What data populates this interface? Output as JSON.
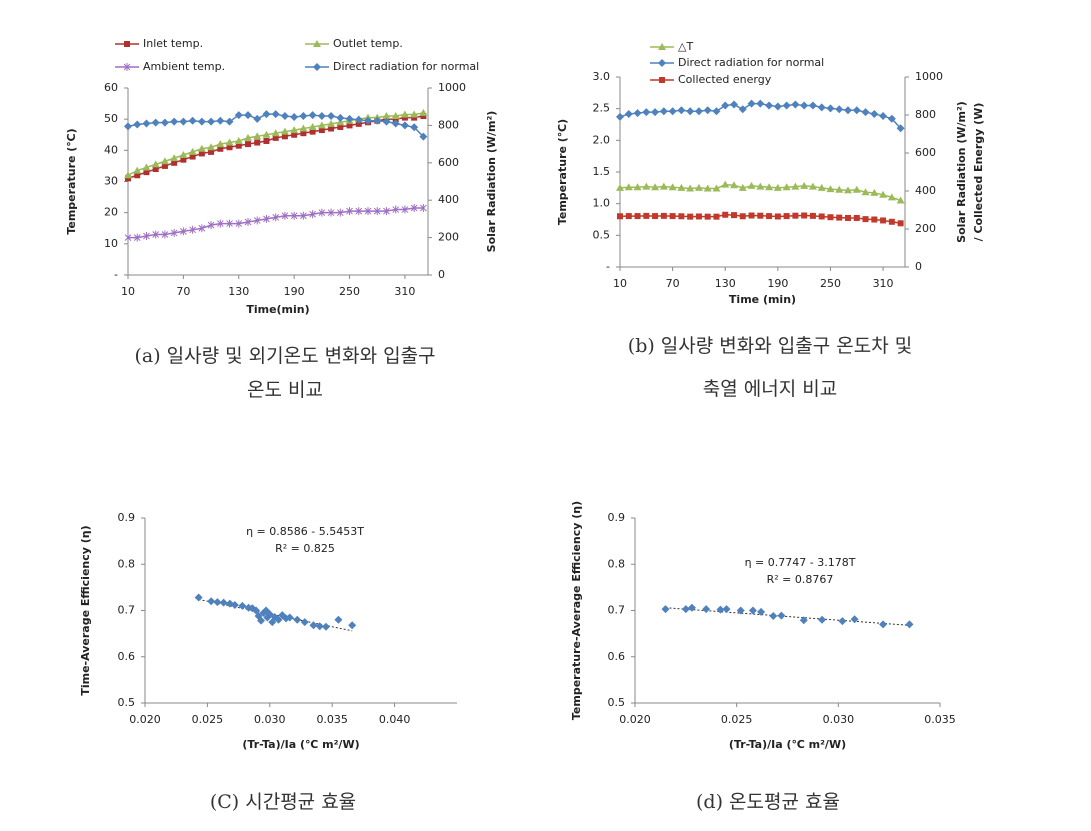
{
  "chart_data": [
    {
      "type": "line",
      "caption": [
        "(a) 일사량 및 외기온도 변화와 입출구",
        "온도 비교"
      ],
      "xlabel": "Time(min)",
      "ylabel": "Temperature (℃)",
      "y2label": "Solar Radiation (W/m²)",
      "x": [
        10,
        20,
        30,
        40,
        50,
        60,
        70,
        80,
        90,
        100,
        110,
        120,
        130,
        140,
        150,
        160,
        170,
        180,
        190,
        200,
        210,
        220,
        230,
        240,
        250,
        260,
        270,
        280,
        290,
        300,
        310,
        320,
        330
      ],
      "xlim": [
        10,
        335
      ],
      "xticks": [
        10,
        70,
        130,
        190,
        250,
        310
      ],
      "ylim": [
        0,
        60
      ],
      "yticks": [
        {
          "value": 0,
          "label": "-"
        },
        10,
        20,
        30,
        40,
        50,
        60
      ],
      "y2lim": [
        0,
        1000
      ],
      "y2ticks": [
        0,
        200,
        400,
        600,
        800,
        1000
      ],
      "series": [
        {
          "name": "Inlet temp.",
          "color": "#b03030",
          "marker": "square",
          "values": [
            31,
            32,
            33,
            34,
            35,
            36,
            37,
            38,
            39,
            39.5,
            40.5,
            41,
            41.5,
            42,
            42.5,
            43,
            44,
            44.5,
            45,
            45.5,
            46,
            46.5,
            47,
            47.5,
            48,
            48.5,
            49,
            49.5,
            50,
            50,
            50.5,
            50.5,
            51
          ]
        },
        {
          "name": "Outlet temp.",
          "color": "#9bbb59",
          "marker": "triangle",
          "values": [
            32,
            33.5,
            34.5,
            35.5,
            36.5,
            37.5,
            38.5,
            39.5,
            40.5,
            41,
            42,
            42.5,
            43,
            44,
            44.5,
            45,
            45.5,
            46,
            46.5,
            47,
            47.5,
            48,
            48.5,
            49,
            49.5,
            50,
            50.5,
            50.5,
            51,
            51,
            51.5,
            51.5,
            52
          ]
        },
        {
          "name": "Ambient temp.",
          "color": "#9f6fc4",
          "marker": "star",
          "values": [
            12,
            12,
            12.5,
            13,
            13,
            13.5,
            14,
            14.5,
            15,
            16,
            16.5,
            16.5,
            16.5,
            17,
            17.5,
            18,
            18.5,
            19,
            19,
            19,
            19.5,
            20,
            20,
            20,
            20.5,
            20.5,
            20.5,
            20.5,
            20.5,
            21,
            21,
            21.5,
            21.5
          ]
        },
        {
          "name": "Direct radiation for normal",
          "color": "#4f81bd",
          "marker": "diamond",
          "axis": "y2",
          "values": [
            795,
            805,
            810,
            815,
            815,
            820,
            820,
            825,
            820,
            820,
            825,
            820,
            855,
            855,
            835,
            860,
            860,
            850,
            845,
            850,
            855,
            850,
            850,
            840,
            835,
            830,
            825,
            825,
            820,
            810,
            800,
            790,
            740
          ]
        }
      ]
    },
    {
      "type": "line",
      "caption": [
        "(b) 일사량 변화와 입출구 온도차 및",
        "축열 에너지 비교"
      ],
      "xlabel": "Time (min)",
      "ylabel": "Temperature (℃)",
      "y2label": [
        "Solar Radiation (W/m²)",
        "/ Collected Energy (W)"
      ],
      "x": [
        10,
        20,
        30,
        40,
        50,
        60,
        70,
        80,
        90,
        100,
        110,
        120,
        130,
        140,
        150,
        160,
        170,
        180,
        190,
        200,
        210,
        220,
        230,
        240,
        250,
        260,
        270,
        280,
        290,
        300,
        310,
        320,
        330
      ],
      "xlim": [
        10,
        335
      ],
      "xticks": [
        10,
        70,
        130,
        190,
        250,
        310
      ],
      "ylim": [
        0,
        3
      ],
      "yticks": [
        {
          "value": 0,
          "label": "-"
        },
        0.5,
        {
          "value": 1,
          "label": "1.0"
        },
        1.5,
        {
          "value": 2,
          "label": "2.0"
        },
        2.5,
        {
          "value": 3,
          "label": "3.0"
        }
      ],
      "y2lim": [
        0,
        1000
      ],
      "y2ticks": [
        0,
        200,
        400,
        600,
        800,
        1000
      ],
      "series": [
        {
          "name": "△T",
          "color": "#9bbb59",
          "marker": "triangle",
          "values": [
            1.25,
            1.26,
            1.26,
            1.27,
            1.26,
            1.27,
            1.26,
            1.25,
            1.24,
            1.25,
            1.24,
            1.24,
            1.3,
            1.29,
            1.25,
            1.28,
            1.27,
            1.26,
            1.25,
            1.26,
            1.27,
            1.28,
            1.27,
            1.25,
            1.23,
            1.22,
            1.21,
            1.22,
            1.18,
            1.17,
            1.14,
            1.1,
            1.05
          ]
        },
        {
          "name": "Direct radiation for normal",
          "color": "#4f81bd",
          "marker": "diamond",
          "axis": "y2",
          "values": [
            790,
            805,
            810,
            815,
            815,
            820,
            820,
            825,
            820,
            820,
            825,
            820,
            850,
            855,
            830,
            860,
            860,
            850,
            845,
            850,
            855,
            850,
            850,
            840,
            835,
            830,
            825,
            825,
            815,
            805,
            795,
            780,
            730
          ]
        },
        {
          "name": "Collected energy",
          "color": "#c0392b",
          "marker": "square",
          "axis": "y2",
          "values": [
            267,
            268,
            268,
            269,
            268,
            269,
            268,
            267,
            265,
            266,
            265,
            265,
            275,
            273,
            267,
            271,
            270,
            268,
            266,
            268,
            270,
            271,
            269,
            266,
            262,
            260,
            258,
            258,
            252,
            250,
            245,
            238,
            230
          ]
        }
      ]
    },
    {
      "type": "scatter",
      "caption": [
        "(C) 시간평균 효율"
      ],
      "xlabel": "(Tr-Ta)/Ia (℃ m²/W)",
      "ylabel": "Time-Average Efficiency (η)",
      "annotations": [
        "η = 0.8586 - 5.5453T",
        "R² = 0.825"
      ],
      "color": "#4f81bd",
      "x": [
        0.0243,
        0.0253,
        0.0258,
        0.0263,
        0.0268,
        0.0272,
        0.0278,
        0.0283,
        0.0286,
        0.0289,
        0.0291,
        0.0293,
        0.0295,
        0.0297,
        0.0298,
        0.03,
        0.0302,
        0.0304,
        0.0307,
        0.031,
        0.0313,
        0.0316,
        0.0322,
        0.0328,
        0.0335,
        0.034,
        0.0345,
        0.0355,
        0.0366
      ],
      "values": [
        0.728,
        0.72,
        0.718,
        0.717,
        0.715,
        0.712,
        0.71,
        0.706,
        0.705,
        0.7,
        0.688,
        0.678,
        0.695,
        0.7,
        0.685,
        0.692,
        0.675,
        0.686,
        0.68,
        0.69,
        0.683,
        0.685,
        0.68,
        0.675,
        0.668,
        0.666,
        0.665,
        0.68,
        0.668
      ],
      "trendline": {
        "x": [
          0.0243,
          0.0366
        ],
        "values": [
          0.724,
          0.656
        ]
      },
      "xlim": [
        0.02,
        0.045
      ],
      "xticks": [
        {
          "value": 0.02,
          "label": "0.020"
        },
        {
          "value": 0.025,
          "label": "0.025"
        },
        {
          "value": 0.03,
          "label": "0.030"
        },
        {
          "value": 0.035,
          "label": "0.035"
        },
        {
          "value": 0.04,
          "label": "0.040"
        }
      ],
      "ylim": [
        0.5,
        0.9
      ],
      "yticks": [
        0.5,
        0.6,
        0.7,
        0.8,
        0.9
      ]
    },
    {
      "type": "scatter",
      "caption": [
        "(d) 온도평균 효율"
      ],
      "xlabel": "(Tr-Ta)/Ia (℃ m²/W)",
      "ylabel": "Temperature-Average Efficiency (η)",
      "annotations": [
        "η = 0.7747 - 3.178T",
        "R² = 0.8767"
      ],
      "color": "#4f81bd",
      "x": [
        0.0215,
        0.0225,
        0.0228,
        0.0235,
        0.0242,
        0.0245,
        0.0252,
        0.0258,
        0.0262,
        0.0268,
        0.0272,
        0.0283,
        0.0292,
        0.0302,
        0.0308,
        0.0322,
        0.0335
      ],
      "values": [
        0.703,
        0.703,
        0.706,
        0.703,
        0.702,
        0.703,
        0.7,
        0.7,
        0.697,
        0.688,
        0.689,
        0.679,
        0.68,
        0.677,
        0.681,
        0.67,
        0.67
      ],
      "trendline": {
        "x": [
          0.0215,
          0.0335
        ],
        "values": [
          0.706,
          0.668
        ]
      },
      "xlim": [
        0.02,
        0.035
      ],
      "xticks": [
        {
          "value": 0.02,
          "label": "0.020"
        },
        {
          "value": 0.025,
          "label": "0.025"
        },
        {
          "value": 0.03,
          "label": "0.030"
        },
        {
          "value": 0.035,
          "label": "0.035"
        }
      ],
      "ylim": [
        0.5,
        0.9
      ],
      "yticks": [
        0.5,
        0.6,
        0.7,
        0.8,
        0.9
      ]
    }
  ]
}
